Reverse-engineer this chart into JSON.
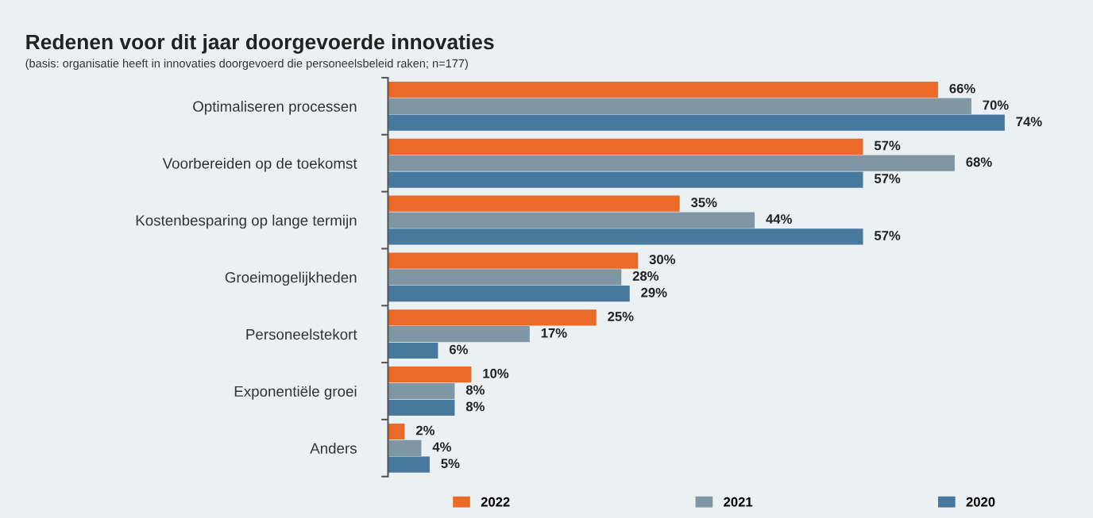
{
  "chart_data": {
    "type": "bar",
    "orientation": "horizontal",
    "title": "Redenen voor dit jaar doorgevoerde innovaties",
    "subtitle": "(basis: organisatie heeft in innovaties doorgevoerd die personeelsbeleid raken; n=177)",
    "categories": [
      "Optimaliseren processen",
      "Voorbereiden op de toekomst",
      "Kostenbesparing op lange termijn",
      "Groeimogelijkheden",
      "Personeelstekort",
      "Exponentiële groei",
      "Anders"
    ],
    "series": [
      {
        "name": "2022",
        "color": "#ec6a28",
        "values": [
          66,
          57,
          35,
          30,
          25,
          10,
          2
        ],
        "value_labels": [
          "66%",
          "57%",
          "35%",
          "30%",
          "25%",
          "10%",
          "2%"
        ]
      },
      {
        "name": "2021",
        "color": "#7f97a4",
        "values": [
          70,
          68,
          44,
          28,
          17,
          8,
          4
        ],
        "value_labels": [
          "70%",
          "68%",
          "44%",
          "28%",
          "17%",
          "8%",
          "4%"
        ]
      },
      {
        "name": "2020",
        "color": "#47799e",
        "values": [
          74,
          57,
          57,
          29,
          6,
          8,
          5
        ],
        "value_labels": [
          "74%",
          "57%",
          "57%",
          "29%",
          "6%",
          "8%",
          "5%"
        ]
      }
    ],
    "tick_labels": "y",
    "legend": "bottom"
  }
}
